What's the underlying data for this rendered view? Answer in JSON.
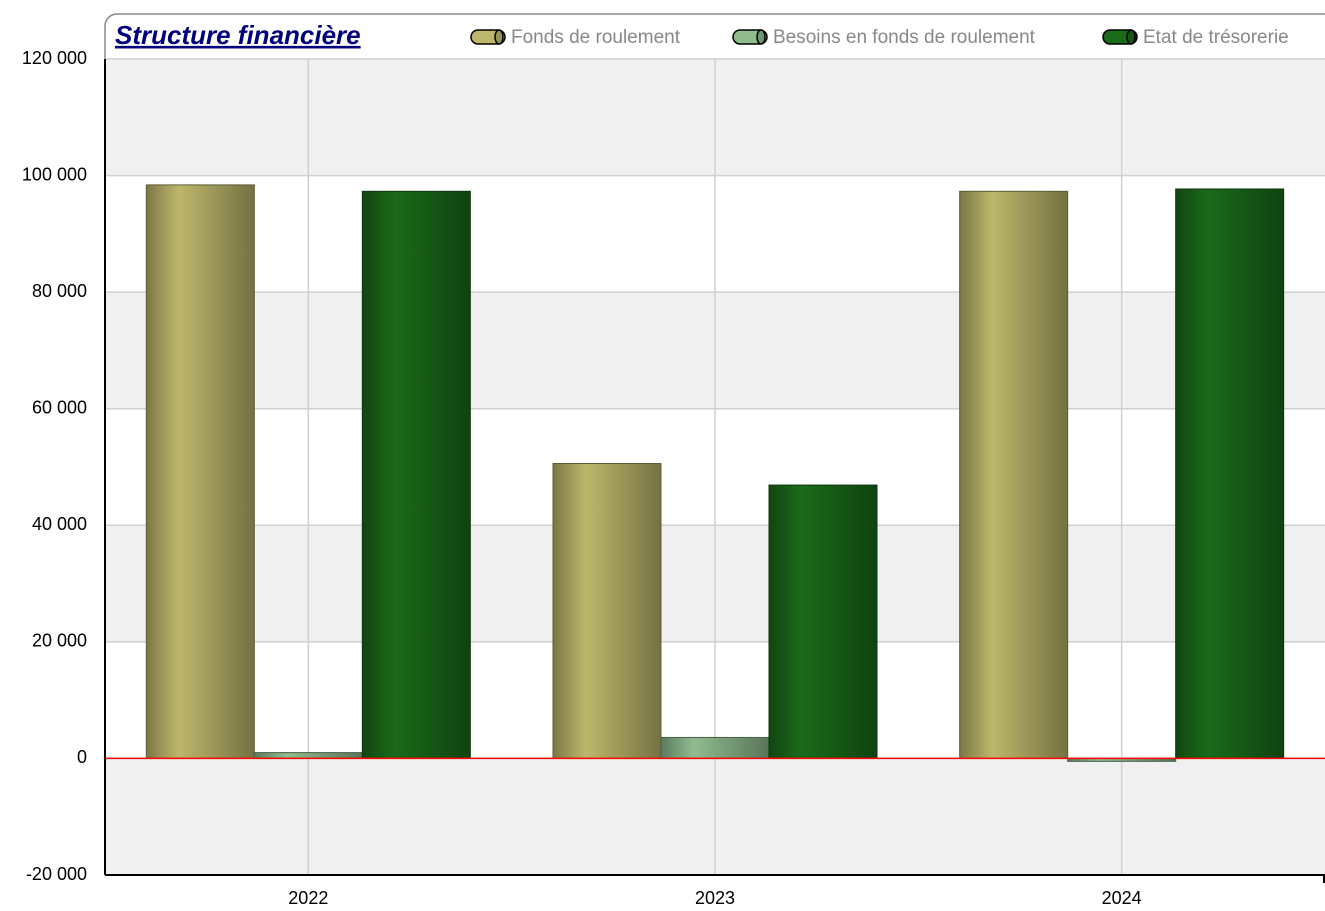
{
  "chart_data": {
    "type": "bar",
    "title": "Structure financière",
    "categories": [
      "2022",
      "2023",
      "2024"
    ],
    "series": [
      {
        "name": "Fonds de roulement",
        "color": "#bdb76b",
        "values": [
          98400,
          50600,
          97300
        ]
      },
      {
        "name": "Besoins en fonds de roulement",
        "color": "#8fbc8f",
        "values": [
          1000,
          3600,
          -500
        ]
      },
      {
        "name": "Etat de trésorerie",
        "color": "#1a6b1a",
        "values": [
          97300,
          46900,
          97700
        ]
      }
    ],
    "ylim": [
      -20000,
      120000
    ],
    "yticks": [
      {
        "value": -20000,
        "label": "-20 000"
      },
      0,
      {
        "value": 20000,
        "label": "20 000"
      },
      {
        "value": 40000,
        "label": "40 000"
      },
      {
        "value": 60000,
        "label": "60 000"
      },
      {
        "value": 80000,
        "label": "80 000"
      },
      {
        "value": 100000,
        "label": "100 000"
      },
      {
        "value": 120000,
        "label": "120 000"
      }
    ],
    "grid": true,
    "zero_line_color": "#ff0000",
    "legend": "top"
  }
}
